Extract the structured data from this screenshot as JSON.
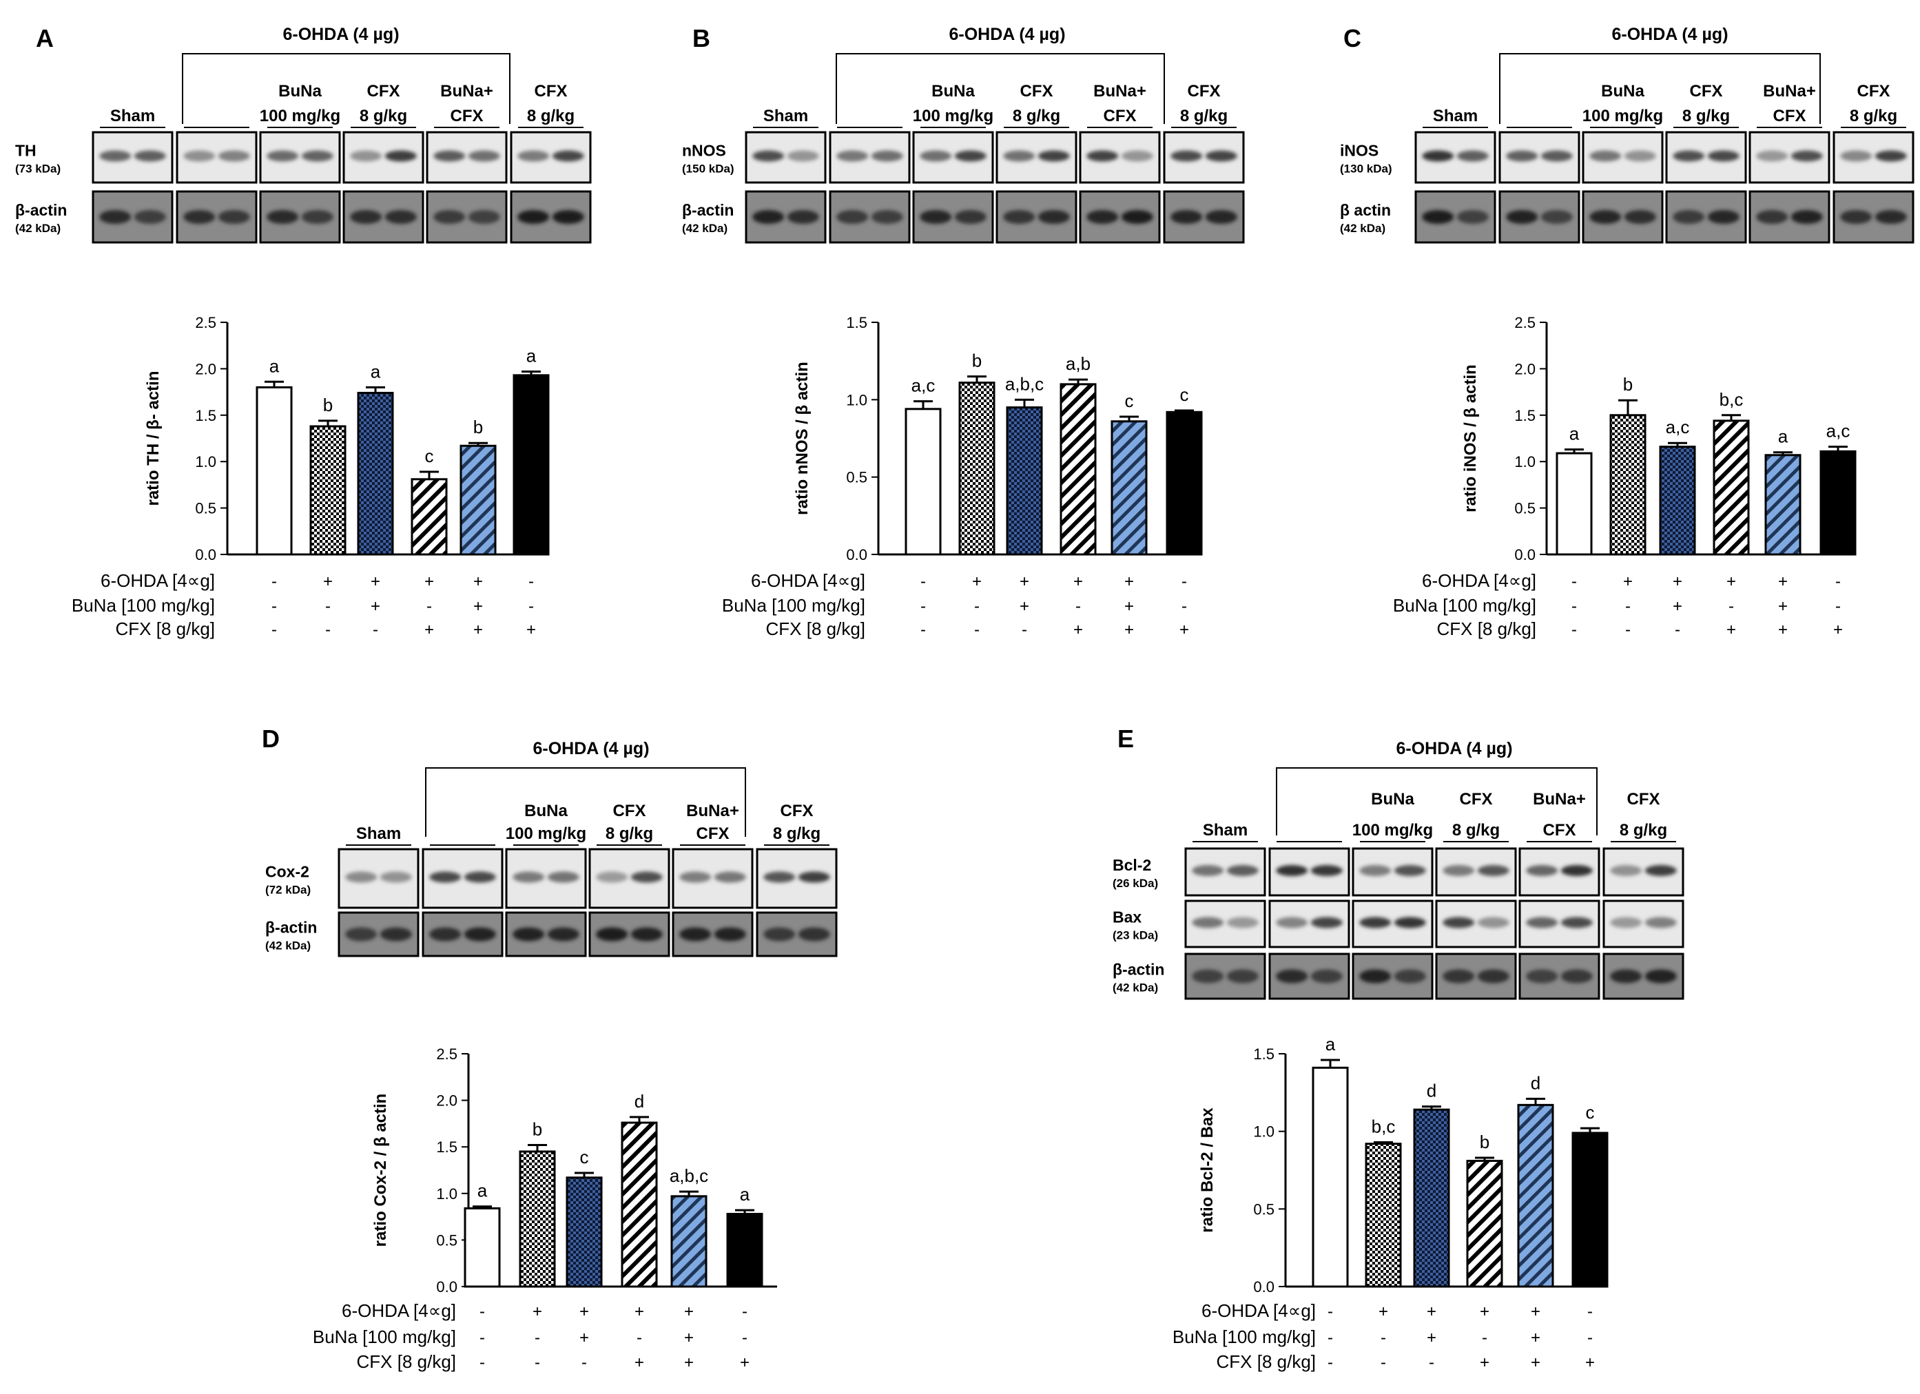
{
  "colors": {
    "white_fill": "#ffffff",
    "dots_fill": "#ffffff",
    "blue_fill": "#3e5f9e",
    "blue_stripe_fill": "#7fa9e0",
    "black_fill": "#000000"
  },
  "treatment_labels": [
    "6-OHDA [4∝g]",
    "BuNa [100 mg/kg]",
    "CFX [8 g/kg]"
  ],
  "treatment_matrix": [
    [
      "-",
      "+",
      "+",
      "+",
      "+",
      "-"
    ],
    [
      "-",
      "-",
      "+",
      "-",
      "+",
      "-"
    ],
    [
      "-",
      "-",
      "-",
      "+",
      "+",
      "+"
    ]
  ],
  "panels": [
    {
      "letter": "A",
      "blot": {
        "group_title": "6-OHDA (4 µg)",
        "lane_labels": [
          [
            "Sham"
          ],
          [
            ""
          ],
          [
            "BuNa",
            "100 mg/kg"
          ],
          [
            "CFX",
            "8 g/kg"
          ],
          [
            "BuNa+",
            "CFX"
          ],
          [
            "CFX",
            "8 g/kg"
          ]
        ],
        "proteins": [
          {
            "name": "TH",
            "kda": "(73 kDa)"
          },
          {
            "name": "β-actin",
            "kda": "(42 kDa)"
          }
        ]
      }
    },
    {
      "letter": "B",
      "blot": {
        "group_title": "6-OHDA (4 µg)",
        "lane_labels": [
          [
            "Sham"
          ],
          [
            ""
          ],
          [
            "BuNa",
            "100 mg/kg"
          ],
          [
            "CFX",
            "8 g/kg"
          ],
          [
            "BuNa+",
            "CFX"
          ],
          [
            "CFX",
            "8 g/kg"
          ]
        ],
        "proteins": [
          {
            "name": "nNOS",
            "kda": "(150 kDa)"
          },
          {
            "name": "β-actin",
            "kda": "(42 kDa)"
          }
        ]
      }
    },
    {
      "letter": "C",
      "blot": {
        "group_title": "6-OHDA (4 µg)",
        "lane_labels": [
          [
            "Sham"
          ],
          [
            ""
          ],
          [
            "BuNa",
            "100 mg/kg"
          ],
          [
            "CFX",
            "8 g/kg"
          ],
          [
            "BuNa+",
            "CFX"
          ],
          [
            "CFX",
            "8 g/kg"
          ]
        ],
        "proteins": [
          {
            "name": "iNOS",
            "kda": "(130 kDa)"
          },
          {
            "name": "β actin",
            "kda": "(42 kDa)"
          }
        ]
      }
    },
    {
      "letter": "D",
      "blot": {
        "group_title": "6-OHDA (4 µg)",
        "lane_labels": [
          [
            "Sham"
          ],
          [
            ""
          ],
          [
            "BuNa",
            "100 mg/kg"
          ],
          [
            "CFX",
            "8 g/kg"
          ],
          [
            "BuNa+",
            "CFX"
          ],
          [
            "CFX",
            "8 g/kg"
          ]
        ],
        "proteins": [
          {
            "name": "Cox-2",
            "kda": "(72 kDa)"
          },
          {
            "name": "β-actin",
            "kda": "(42 kDa)"
          }
        ]
      }
    },
    {
      "letter": "E",
      "blot": {
        "group_title": "6-OHDA (4 µg)",
        "lane_labels": [
          [
            "Sham"
          ],
          [
            ""
          ],
          [
            "BuNa",
            "100 mg/kg"
          ],
          [
            "CFX",
            "8 g/kg"
          ],
          [
            "BuNa+",
            "CFX"
          ],
          [
            "CFX",
            "8 g/kg"
          ]
        ],
        "proteins": [
          {
            "name": "Bcl-2",
            "kda": "(26 kDa)"
          },
          {
            "name": "Bax",
            "kda": "(23 kDa)"
          },
          {
            "name": "β-actin",
            "kda": "(42 kDa)"
          }
        ]
      }
    }
  ],
  "chart_data": [
    {
      "type": "bar",
      "panel": "A",
      "title": "",
      "xlabel": "",
      "ylabel": "ratio TH / β- actin",
      "ylim": [
        0,
        2.5
      ],
      "ticks": [
        0.0,
        0.5,
        1.0,
        1.5,
        2.0,
        2.5
      ],
      "values": [
        1.8,
        1.38,
        1.74,
        0.81,
        1.17,
        1.93
      ],
      "errors": [
        0.06,
        0.06,
        0.06,
        0.08,
        0.03,
        0.04
      ],
      "letters": [
        "a",
        "b",
        "a",
        "c",
        "b",
        "a"
      ]
    },
    {
      "type": "bar",
      "panel": "B",
      "title": "",
      "xlabel": "",
      "ylabel": "ratio nNOS / β actin",
      "ylim": [
        0,
        1.5
      ],
      "ticks": [
        0.0,
        0.5,
        1.0,
        1.5
      ],
      "values": [
        0.94,
        1.11,
        0.95,
        1.1,
        0.86,
        0.92
      ],
      "errors": [
        0.05,
        0.04,
        0.05,
        0.03,
        0.03,
        0.01
      ],
      "letters": [
        "a,c",
        "b",
        "a,b,c",
        "a,b",
        "c",
        "c"
      ]
    },
    {
      "type": "bar",
      "panel": "C",
      "title": "",
      "xlabel": "",
      "ylabel": "ratio iNOS / β actin",
      "ylim": [
        0,
        2.5
      ],
      "ticks": [
        0.0,
        0.5,
        1.0,
        1.5,
        2.0,
        2.5
      ],
      "values": [
        1.09,
        1.5,
        1.16,
        1.44,
        1.07,
        1.11
      ],
      "errors": [
        0.04,
        0.16,
        0.04,
        0.06,
        0.03,
        0.05
      ],
      "letters": [
        "a",
        "b",
        "a,c",
        "b,c",
        "a",
        "a,c"
      ]
    },
    {
      "type": "bar",
      "panel": "D",
      "title": "",
      "xlabel": "",
      "ylabel": "ratio Cox-2 / β actin",
      "ylim": [
        0,
        2.5
      ],
      "ticks": [
        0.0,
        0.5,
        1.0,
        1.5,
        2.0,
        2.5
      ],
      "values": [
        0.84,
        1.45,
        1.17,
        1.76,
        0.97,
        0.78
      ],
      "errors": [
        0.02,
        0.07,
        0.05,
        0.06,
        0.05,
        0.04
      ],
      "letters": [
        "a",
        "b",
        "c",
        "d",
        "a,b,c",
        "a"
      ]
    },
    {
      "type": "bar",
      "panel": "E",
      "title": "",
      "xlabel": "",
      "ylabel": "ratio Bcl-2 / Bax",
      "ylim": [
        0,
        1.5
      ],
      "ticks": [
        0.0,
        0.5,
        1.0,
        1.5
      ],
      "values": [
        1.41,
        0.92,
        1.14,
        0.81,
        1.17,
        0.99
      ],
      "errors": [
        0.05,
        0.01,
        0.02,
        0.02,
        0.04,
        0.03
      ],
      "letters": [
        "a",
        "b,c",
        "d",
        "b",
        "d",
        "c"
      ]
    }
  ]
}
